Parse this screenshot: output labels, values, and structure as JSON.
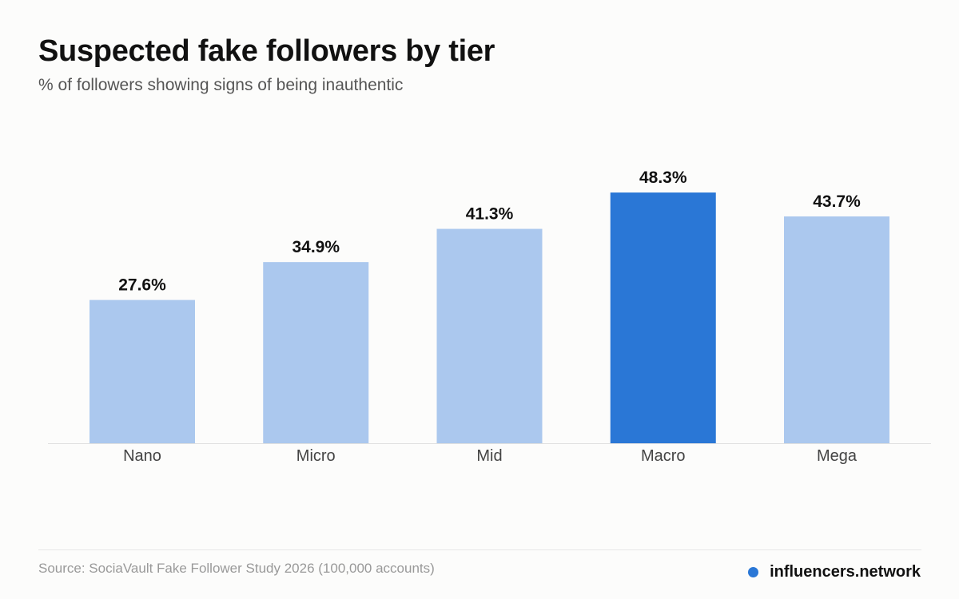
{
  "colors": {
    "bar_default": "#abc8ee",
    "bar_highlight": "#2a77d6",
    "value_label": "#111111",
    "axis_label": "#444444",
    "baseline": "#e0e0e0",
    "brand_dot": "#2a77d6"
  },
  "chart_data": {
    "type": "bar",
    "title": "Suspected fake followers by tier",
    "subtitle": "% of followers showing signs of being inauthentic",
    "categories": [
      "Nano",
      "Micro",
      "Mid",
      "Macro",
      "Mega"
    ],
    "values": [
      27.6,
      34.9,
      41.3,
      48.3,
      43.7
    ],
    "value_labels": [
      "27.6%",
      "34.9%",
      "41.3%",
      "48.3%",
      "43.7%"
    ],
    "highlight": "Macro",
    "ylim": [
      0,
      55
    ],
    "grid": false,
    "legend": "none"
  },
  "footer": {
    "source": "Source: SociaVault Fake Follower Study 2026 (100,000 accounts)",
    "brand": "influencers.network",
    "brand_icon": "dot-icon"
  }
}
